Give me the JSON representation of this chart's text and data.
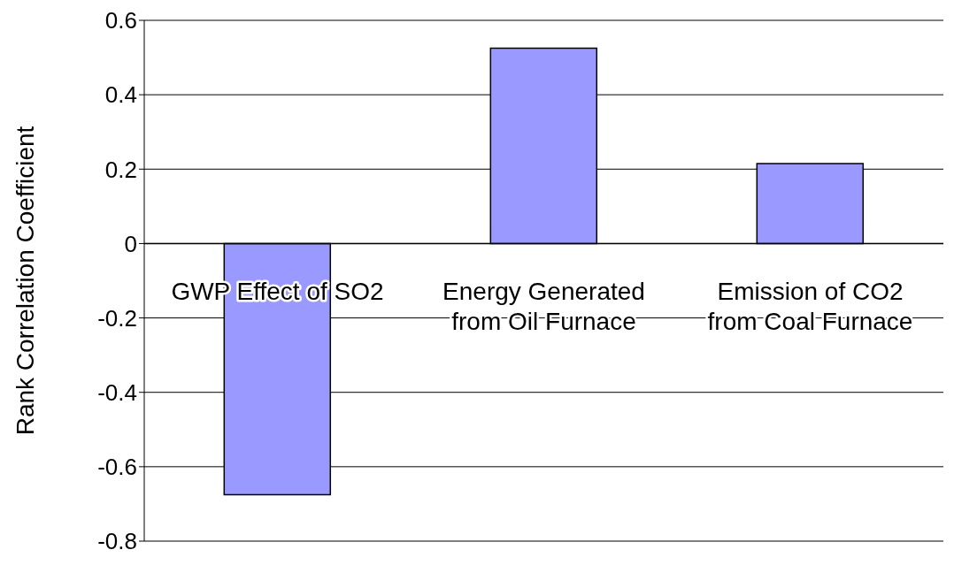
{
  "chart_data": {
    "type": "bar",
    "ylabel": "Rank Correlation Coefficient",
    "categories": [
      "GWP Effect of SO2",
      "Energy Generated from Oil Furnace",
      "Emission of CO2 from Coal Furnace"
    ],
    "values": [
      -0.675,
      0.525,
      0.215
    ],
    "color": "#9999ff",
    "ylim": [
      -0.8,
      0.6
    ],
    "yticks": [
      -0.8,
      -0.6,
      -0.4,
      -0.2,
      0,
      0.2,
      0.4,
      0.6
    ],
    "grid": "y",
    "legend": false
  }
}
